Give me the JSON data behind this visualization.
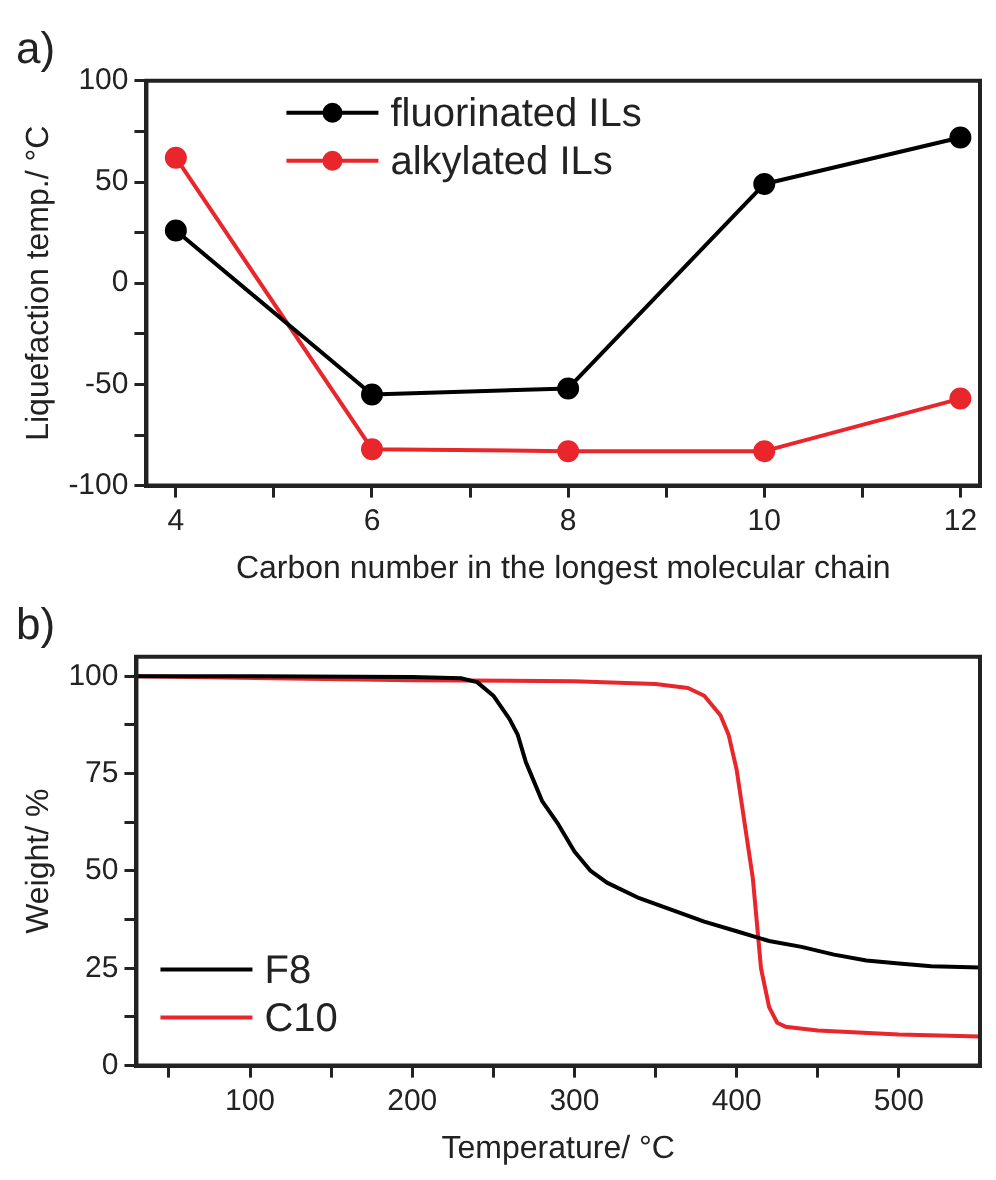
{
  "chart_data": [
    {
      "type": "line",
      "title": "a)",
      "xlabel": "Carbon number in the longest molecular chain",
      "ylabel": "Liquefaction temp./ °C",
      "x": [
        4,
        6,
        8,
        10,
        12
      ],
      "series": [
        {
          "name": "fluorinated ILs",
          "color": "#000000",
          "values": [
            26,
            -55,
            -52,
            49,
            72
          ]
        },
        {
          "name": "alkylated ILs",
          "color": "#e8262b",
          "values": [
            62,
            -82,
            -83,
            -83,
            -57
          ]
        }
      ],
      "xlim": [
        3.7,
        12.2
      ],
      "xticks": [
        4,
        {
          "value": 5,
          "label": null
        },
        6,
        {
          "value": 7,
          "label": null
        },
        8,
        {
          "value": 9,
          "label": null
        },
        10,
        {
          "value": 11,
          "label": null
        },
        12
      ],
      "ylim": [
        -100,
        100
      ],
      "yticks": [
        -100,
        {
          "value": -75,
          "label": null
        },
        -50,
        {
          "value": -25,
          "label": null
        },
        0,
        {
          "value": 25,
          "label": null
        },
        50,
        {
          "value": 75,
          "label": null
        },
        100
      ],
      "grid": false,
      "legend": "top left",
      "marker": "circle",
      "line_style": "solid"
    },
    {
      "type": "line",
      "title": "b)",
      "xlabel": "Temperature/ °C",
      "ylabel": "Weight/ %",
      "series": [
        {
          "name": "F8",
          "color": "#000000",
          "x": [
            30,
            100,
            200,
            230,
            240,
            250,
            260,
            265,
            270,
            275,
            280,
            290,
            300,
            310,
            320,
            340,
            360,
            380,
            400,
            420,
            440,
            460,
            480,
            500,
            520,
            550
          ],
          "values": [
            100,
            100,
            99.8,
            99.5,
            98.5,
            95,
            89,
            85,
            78,
            73,
            68,
            62,
            55,
            50,
            47,
            43,
            40,
            37,
            34.5,
            32,
            30.5,
            28.5,
            27,
            26.2,
            25.5,
            25.2
          ]
        },
        {
          "name": "C10",
          "color": "#e8262b",
          "x": [
            30,
            200,
            300,
            350,
            370,
            380,
            390,
            395,
            400,
            405,
            410,
            415,
            420,
            425,
            430,
            450,
            500,
            550
          ],
          "values": [
            100,
            99,
            98.7,
            98,
            97,
            95,
            90,
            85,
            76,
            62,
            48,
            25,
            15,
            11,
            10,
            9,
            8,
            7.5
          ]
        }
      ],
      "xlim": [
        30,
        550
      ],
      "xticks": [
        {
          "value": 50,
          "label": null
        },
        100,
        {
          "value": 150,
          "label": null
        },
        200,
        {
          "value": 250,
          "label": null
        },
        300,
        {
          "value": 350,
          "label": null
        },
        400,
        {
          "value": 450,
          "label": null
        },
        500
      ],
      "ylim": [
        0,
        105
      ],
      "yticks": [
        0,
        {
          "value": 12.5,
          "label": null
        },
        25,
        {
          "value": 37.5,
          "label": null
        },
        50,
        {
          "value": 62.5,
          "label": null
        },
        75,
        {
          "value": 87.5,
          "label": null
        },
        100
      ],
      "grid": false,
      "legend": "bottom left",
      "marker": "none",
      "line_style": "solid"
    }
  ]
}
